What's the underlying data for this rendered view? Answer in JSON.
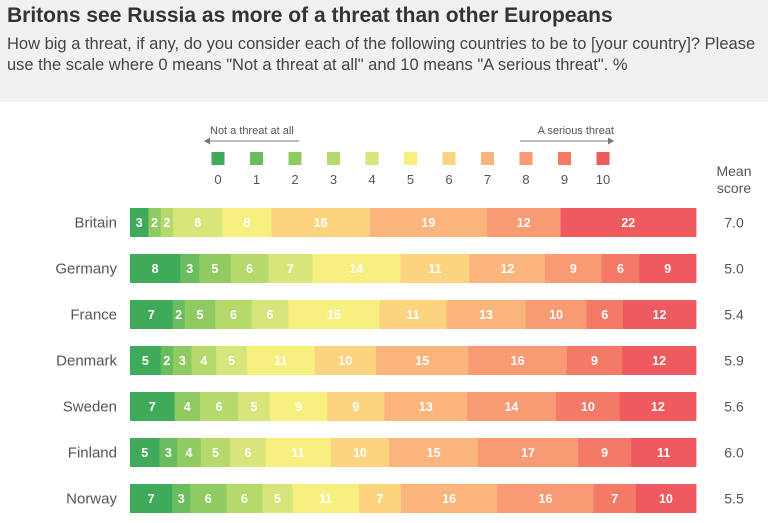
{
  "title": "Britons see Russia as more of a threat than other Europeans",
  "subtitle": "How big a threat, if any, do you consider each of the following countries to be to [your country]? Please use the scale where 0 means \"Not a threat at all\" and 10 means \"A serious threat\". %",
  "chart_data": {
    "type": "bar",
    "orientation": "horizontal-stacked-100",
    "scale_low_label": "Not a threat at all",
    "scale_high_label": "A serious threat",
    "mean_header_1": "Mean",
    "mean_header_2": "score",
    "scale_points": [
      "0",
      "1",
      "2",
      "3",
      "4",
      "5",
      "6",
      "7",
      "8",
      "9",
      "10"
    ],
    "colors": [
      "#3fab5a",
      "#6abd5e",
      "#8fcb62",
      "#b5d96b",
      "#d7e57a",
      "#f7ef7e",
      "#fcd47f",
      "#fbb57c",
      "#f89a73",
      "#f47a68",
      "#ef5a5e"
    ],
    "categories": [
      "Britain",
      "Germany",
      "France",
      "Denmark",
      "Sweden",
      "Finland",
      "Norway"
    ],
    "series": [
      {
        "name": "0",
        "values": [
          3,
          8,
          7,
          5,
          7,
          5,
          7
        ]
      },
      {
        "name": "1",
        "values": [
          0,
          3,
          2,
          2,
          0,
          3,
          3
        ]
      },
      {
        "name": "2",
        "values": [
          2,
          5,
          5,
          3,
          4,
          4,
          6
        ]
      },
      {
        "name": "3",
        "values": [
          2,
          6,
          6,
          4,
          6,
          5,
          6
        ]
      },
      {
        "name": "4",
        "values": [
          8,
          7,
          6,
          5,
          5,
          6,
          5
        ]
      },
      {
        "name": "5",
        "values": [
          8,
          14,
          15,
          11,
          9,
          11,
          11
        ]
      },
      {
        "name": "6",
        "values": [
          16,
          11,
          11,
          10,
          9,
          10,
          7
        ]
      },
      {
        "name": "7",
        "values": [
          19,
          12,
          13,
          15,
          13,
          15,
          16
        ]
      },
      {
        "name": "8",
        "values": [
          12,
          9,
          10,
          16,
          14,
          17,
          16
        ]
      },
      {
        "name": "9",
        "values": [
          0,
          6,
          6,
          9,
          10,
          9,
          7
        ]
      },
      {
        "name": "10",
        "values": [
          22,
          9,
          12,
          12,
          12,
          11,
          10
        ]
      }
    ],
    "mean_scores": [
      "7.0",
      "5.0",
      "5.4",
      "5.9",
      "5.6",
      "6.0",
      "5.5"
    ]
  }
}
